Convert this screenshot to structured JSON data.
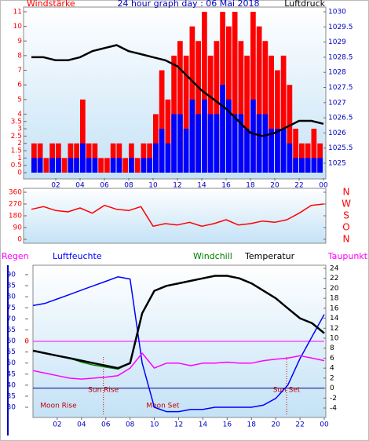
{
  "chart_data": [
    {
      "type": "bar",
      "title": "24 hour graph day : 06 Mai 2018",
      "ylabel": "Windstärke",
      "y2label": "Luftdruck",
      "xlim": [
        0,
        24
      ],
      "xticks": [
        {
          "value": 2,
          "label": "02"
        },
        {
          "value": 4,
          "label": "04"
        },
        {
          "value": 6,
          "label": "06"
        },
        {
          "value": 8,
          "label": "08"
        },
        10,
        12,
        14,
        16,
        18,
        20,
        22,
        {
          "value": 24,
          "label": "00"
        }
      ],
      "ylim": [
        0,
        11
      ],
      "yticks": [
        0,
        0.5,
        1,
        1.5,
        2,
        2.5,
        3,
        3.5,
        4,
        5,
        6,
        7,
        8,
        9,
        10,
        11
      ],
      "y2lim": [
        1025,
        1030
      ],
      "y2ticks": [
        1025,
        1025.5,
        1026,
        1026.5,
        1027,
        1027.5,
        1028,
        1028.5,
        1029,
        1029.5,
        1030
      ],
      "series": [
        {
          "color": "#ff0000",
          "x": [
            0,
            0.5,
            1,
            1.5,
            2,
            2.5,
            3,
            3.5,
            4,
            4.5,
            5,
            5.5,
            6,
            6.5,
            7,
            7.5,
            8,
            8.5,
            9,
            9.5,
            10,
            10.5,
            11,
            11.5,
            12,
            12.5,
            13,
            13.5,
            14,
            14.5,
            15,
            15.5,
            16,
            16.5,
            17,
            17.5,
            18,
            18.5,
            19,
            19.5,
            20,
            20.5,
            21,
            21.5,
            22,
            22.5,
            23,
            23.5
          ],
          "values": [
            2,
            2,
            1,
            2,
            2,
            1,
            2,
            2,
            5,
            2,
            2,
            1,
            1,
            2,
            2,
            1,
            2,
            1,
            2,
            2,
            4,
            7,
            5,
            8,
            9,
            8,
            10,
            9,
            11,
            8,
            9,
            11,
            10,
            11,
            9,
            8,
            11,
            10,
            9,
            8,
            7,
            8,
            6,
            3,
            2,
            2,
            3,
            2
          ]
        },
        {
          "color": "#0000ff",
          "x": [
            0,
            0.5,
            1,
            1.5,
            2,
            2.5,
            3,
            3.5,
            4,
            4.5,
            5,
            5.5,
            6,
            6.5,
            7,
            7.5,
            8,
            8.5,
            9,
            9.5,
            10,
            10.5,
            11,
            11.5,
            12,
            12.5,
            13,
            13.5,
            14,
            14.5,
            15,
            15.5,
            16,
            16.5,
            17,
            17.5,
            18,
            18.5,
            19,
            19.5,
            20,
            20.5,
            21,
            21.5,
            22,
            22.5,
            23,
            23.5
          ],
          "values": [
            1,
            1,
            0,
            1,
            1,
            0,
            1,
            1,
            2,
            1,
            1,
            0,
            0,
            1,
            1,
            0,
            1,
            0,
            1,
            1,
            2,
            3,
            2,
            4,
            4,
            3,
            5,
            4,
            5,
            4,
            4,
            6,
            5,
            4,
            4,
            3,
            5,
            4,
            4,
            3,
            3,
            3,
            2,
            1,
            1,
            1,
            1,
            1
          ]
        },
        {
          "type": "line",
          "axis": "y2",
          "color": "#000000",
          "x": [
            0,
            1,
            2,
            3,
            4,
            5,
            6,
            7,
            8,
            9,
            10,
            11,
            12,
            13,
            14,
            15,
            16,
            17,
            18,
            19,
            20,
            21,
            22,
            23,
            24
          ],
          "values": [
            1028.5,
            1028.5,
            1028.4,
            1028.4,
            1028.5,
            1028.7,
            1028.8,
            1028.9,
            1028.7,
            1028.6,
            1028.5,
            1028.4,
            1028.2,
            1027.8,
            1027.4,
            1027.1,
            1026.8,
            1026.4,
            1026,
            1025.9,
            1026,
            1026.2,
            1026.4,
            1026.4,
            1026.3
          ]
        }
      ]
    },
    {
      "type": "line",
      "xlim": [
        0,
        24
      ],
      "ylim": [
        0,
        360
      ],
      "yticks": [
        0,
        90,
        180,
        270,
        360
      ],
      "y2lim": [
        0,
        360
      ],
      "y2ticks": [
        {
          "value": 0,
          "label": "N"
        },
        {
          "value": 90,
          "label": "O"
        },
        {
          "value": 180,
          "label": "S"
        },
        {
          "value": 270,
          "label": "W"
        },
        {
          "value": 360,
          "label": "N"
        }
      ],
      "series": [
        {
          "color": "#ff0000",
          "x": [
            0,
            1,
            2,
            3,
            4,
            5,
            6,
            7,
            8,
            9,
            10,
            11,
            12,
            13,
            14,
            15,
            16,
            17,
            18,
            19,
            20,
            21,
            22,
            23,
            24
          ],
          "values": [
            230,
            250,
            220,
            210,
            240,
            200,
            260,
            230,
            220,
            250,
            100,
            120,
            110,
            130,
            100,
            120,
            150,
            110,
            120,
            140,
            130,
            150,
            200,
            260,
            270
          ]
        }
      ]
    },
    {
      "type": "line",
      "xlim": [
        0,
        24
      ],
      "xticks": [
        {
          "value": 2,
          "label": "02"
        },
        {
          "value": 4,
          "label": "04"
        },
        {
          "value": 6,
          "label": "06"
        },
        {
          "value": 8,
          "label": "08"
        },
        10,
        12,
        14,
        16,
        18,
        20,
        22,
        {
          "value": 24,
          "label": "00"
        }
      ],
      "ylim": [
        30,
        90
      ],
      "yticks": [
        30,
        35,
        40,
        45,
        50,
        55,
        60,
        65,
        70,
        75,
        80,
        85,
        90
      ],
      "y2lim": [
        -4,
        24
      ],
      "y2ticks": [
        -4,
        -2,
        0,
        2,
        4,
        6,
        8,
        10,
        12,
        14,
        16,
        18,
        20,
        22,
        24
      ],
      "y3label": "Regen",
      "y3ticks": [
        0
      ],
      "series": [
        {
          "name": "Luftfeuchte",
          "color": "#0000ff",
          "x": [
            0,
            1,
            2,
            3,
            4,
            5,
            6,
            7,
            8,
            9,
            10,
            11,
            12,
            13,
            14,
            15,
            16,
            17,
            18,
            19,
            20,
            21,
            22,
            23,
            24
          ],
          "values": [
            76,
            77,
            79,
            81,
            83,
            85,
            87,
            89,
            88,
            50,
            30,
            28,
            28,
            29,
            29,
            30,
            30,
            30,
            30,
            31,
            34,
            40,
            52,
            62,
            72
          ]
        },
        {
          "name": "Windchill",
          "axis": "y2",
          "color": "#008000",
          "x": [
            0,
            1,
            2,
            3,
            4,
            5,
            6,
            7,
            8,
            9,
            10,
            11,
            12,
            13,
            14,
            15,
            16,
            17,
            18,
            19,
            20,
            21,
            22,
            23,
            24
          ],
          "values": [
            7.5,
            7,
            6.5,
            6,
            5.2,
            4.6,
            4.2,
            3.8,
            5,
            15,
            19.5,
            20.5,
            21,
            21.5,
            22,
            22.5,
            22.5,
            22,
            21,
            19.5,
            18,
            16,
            14,
            13,
            11
          ]
        },
        {
          "name": "Temperatur",
          "axis": "y2",
          "color": "#000000",
          "x": [
            0,
            1,
            2,
            3,
            4,
            5,
            6,
            7,
            8,
            9,
            10,
            11,
            12,
            13,
            14,
            15,
            16,
            17,
            18,
            19,
            20,
            21,
            22,
            23,
            24
          ],
          "values": [
            7.5,
            7,
            6.5,
            6,
            5.5,
            5,
            4.5,
            4,
            5,
            15,
            19.5,
            20.5,
            21,
            21.5,
            22,
            22.5,
            22.5,
            22,
            21,
            19.5,
            18,
            16,
            14,
            13,
            11
          ]
        },
        {
          "name": "Taupunkt",
          "axis": "y2",
          "color": "#ff00ff",
          "x": [
            0,
            1,
            2,
            3,
            4,
            5,
            6,
            7,
            8,
            9,
            10,
            11,
            12,
            13,
            14,
            15,
            16,
            17,
            18,
            19,
            20,
            21,
            22,
            23,
            24
          ],
          "values": [
            3.5,
            3,
            2.5,
            2,
            1.8,
            2,
            2.2,
            2.5,
            4,
            7,
            4,
            5,
            5,
            4.5,
            5,
            5,
            5.2,
            5,
            5,
            5.5,
            5.8,
            6,
            6.5,
            6,
            5.5
          ]
        }
      ],
      "annotations": [
        {
          "text": "Sun Rise",
          "x": 5.8
        },
        {
          "text": "Sun Set",
          "x": 20.9
        },
        {
          "text": "Moon Rise",
          "x": 2.1
        },
        {
          "text": "Moon Set",
          "x": 10.7
        }
      ]
    }
  ]
}
